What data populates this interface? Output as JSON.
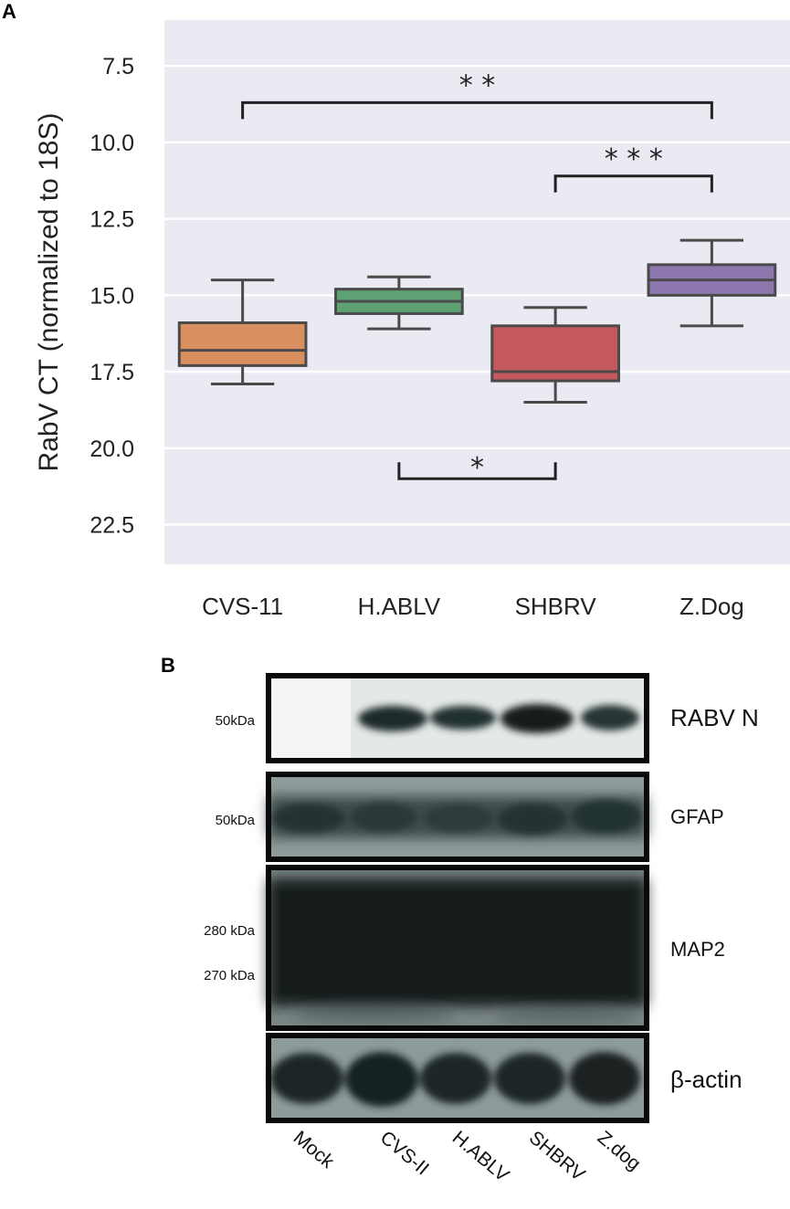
{
  "panels": {
    "a": "A",
    "b": "B"
  },
  "chart_data": {
    "type": "box",
    "ylabel": "RabV CT (normalized to 18S)",
    "y_inverted": true,
    "ylim": [
      23.8,
      6.0
    ],
    "yticks": [
      7.5,
      10.0,
      12.5,
      15.0,
      17.5,
      20.0,
      22.5
    ],
    "ytick_labels": [
      "7.5",
      "10.0",
      "12.5",
      "15.0",
      "17.5",
      "20.0",
      "22.5"
    ],
    "grid": true,
    "categories": [
      "CVS-11",
      "H.ABLV",
      "SHBRV",
      "Z.Dog"
    ],
    "boxes": [
      {
        "name": "CVS-11",
        "color": "#D98F5F",
        "whisker_low": 14.5,
        "q1": 15.9,
        "median": 16.8,
        "q3": 17.3,
        "whisker_high": 17.9
      },
      {
        "name": "H.ABLV",
        "color": "#5EA274",
        "whisker_low": 14.4,
        "q1": 14.8,
        "median": 15.2,
        "q3": 15.6,
        "whisker_high": 16.1
      },
      {
        "name": "SHBRV",
        "color": "#C3595E",
        "whisker_low": 15.4,
        "q1": 16.0,
        "median": 17.5,
        "q3": 17.8,
        "whisker_high": 18.5
      },
      {
        "name": "Z.Dog",
        "color": "#8C77AE",
        "whisker_low": 13.2,
        "q1": 14.0,
        "median": 14.5,
        "q3": 15.0,
        "whisker_high": 16.0
      }
    ],
    "significance": [
      {
        "from": 0,
        "to": 3,
        "y": 8.7,
        "label": "* *",
        "side": "above"
      },
      {
        "from": 2,
        "to": 3,
        "y": 11.1,
        "label": "* * *",
        "side": "above"
      },
      {
        "from": 1,
        "to": 2,
        "y": 21.0,
        "label": "*",
        "side": "below"
      }
    ]
  },
  "blot": {
    "lanes": [
      "Mock",
      "CVS-II",
      "H.ABLV",
      "SHBRV",
      "Z.dog"
    ],
    "rows": [
      {
        "name": "RABV N",
        "markers": [
          "50kDa"
        ]
      },
      {
        "name": "GFAP",
        "markers": [
          "50kDa"
        ]
      },
      {
        "name": "MAP2",
        "markers": [
          "280 kDa",
          "270 kDa"
        ]
      },
      {
        "name": "β-actin",
        "markers": []
      }
    ]
  }
}
